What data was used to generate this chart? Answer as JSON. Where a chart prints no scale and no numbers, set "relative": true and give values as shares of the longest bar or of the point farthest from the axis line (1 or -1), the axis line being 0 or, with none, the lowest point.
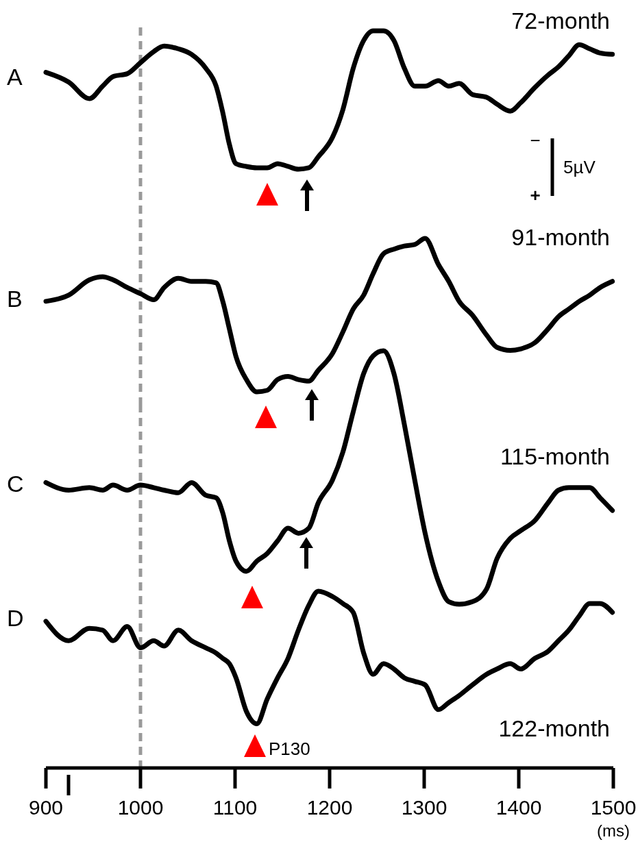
{
  "chart_data": [
    {
      "type": "line",
      "title": "A",
      "subtitle": "72-month",
      "relative": true,
      "tick_labels": false,
      "xlim": [
        900,
        1500
      ],
      "ref_lines": [
        {
          "axis": "x",
          "value": 1000,
          "color": "#999999",
          "line_style": "dashed"
        }
      ],
      "annotations": [
        "−",
        "+",
        "5µV"
      ],
      "x": [
        900,
        924,
        946,
        960,
        971,
        986,
        1000,
        1014,
        1025,
        1040,
        1054,
        1069,
        1080,
        1087,
        1094,
        1101,
        1112,
        1123,
        1134,
        1145,
        1156,
        1167,
        1178,
        1188,
        1203,
        1214,
        1225,
        1236,
        1246,
        1257,
        1268,
        1279,
        1290,
        1301,
        1315,
        1326,
        1337,
        1351,
        1366,
        1377,
        1391,
        1402,
        1417,
        1431,
        1442,
        1453,
        1464,
        1475,
        1486,
        1499
      ],
      "series": [
        {
          "color": "#000000",
          "values": [
            0.7,
            0.63,
            0.51,
            0.6,
            0.67,
            0.69,
            0.77,
            0.85,
            0.89,
            0.87,
            0.83,
            0.73,
            0.6,
            0.41,
            0.18,
            0.04,
            0.02,
            0.01,
            0.01,
            0.04,
            0.02,
            0,
            0.01,
            0.09,
            0.23,
            0.43,
            0.73,
            0.93,
            1,
            1,
            0.93,
            0.73,
            0.6,
            0.6,
            0.64,
            0.6,
            0.62,
            0.54,
            0.52,
            0.47,
            0.42,
            0.48,
            0.59,
            0.68,
            0.74,
            0.82,
            0.9,
            0.87,
            0.84,
            0.83
          ]
        }
      ]
    },
    {
      "type": "line",
      "title": "B",
      "subtitle": "91-month",
      "relative": true,
      "tick_labels": false,
      "xlim": [
        900,
        1500
      ],
      "ref_lines": [
        {
          "axis": "x",
          "value": 1000,
          "color": "#999999",
          "line_style": "dashed"
        }
      ],
      "x": [
        900,
        924,
        946,
        960,
        971,
        986,
        1000,
        1014,
        1025,
        1040,
        1054,
        1069,
        1080,
        1087,
        1094,
        1101,
        1112,
        1123,
        1134,
        1145,
        1156,
        1167,
        1178,
        1188,
        1203,
        1214,
        1225,
        1236,
        1246,
        1257,
        1268,
        1279,
        1290,
        1301,
        1315,
        1326,
        1337,
        1351,
        1366,
        1377,
        1391,
        1402,
        1417,
        1431,
        1442,
        1453,
        1464,
        1475,
        1486,
        1499
      ],
      "series": [
        {
          "color": "#000000",
          "values": [
            0.59,
            0.63,
            0.73,
            0.75,
            0.73,
            0.68,
            0.64,
            0.6,
            0.68,
            0.74,
            0.72,
            0.72,
            0.71,
            0.59,
            0.41,
            0.23,
            0.08,
            0,
            0.01,
            0.08,
            0.1,
            0.08,
            0.07,
            0.14,
            0.25,
            0.39,
            0.54,
            0.63,
            0.77,
            0.9,
            0.93,
            0.95,
            0.96,
            1,
            0.83,
            0.72,
            0.59,
            0.5,
            0.37,
            0.29,
            0.27,
            0.28,
            0.32,
            0.41,
            0.49,
            0.54,
            0.59,
            0.63,
            0.68,
            0.72
          ]
        }
      ]
    },
    {
      "type": "line",
      "title": "C",
      "subtitle": "115-month",
      "relative": true,
      "tick_labels": false,
      "xlim": [
        900,
        1500
      ],
      "ref_lines": [
        {
          "axis": "x",
          "value": 1000,
          "color": "#999999",
          "line_style": "dashed"
        }
      ],
      "x": [
        900,
        924,
        946,
        960,
        971,
        986,
        1000,
        1014,
        1025,
        1040,
        1054,
        1069,
        1080,
        1087,
        1094,
        1101,
        1112,
        1123,
        1134,
        1145,
        1156,
        1167,
        1178,
        1188,
        1203,
        1214,
        1225,
        1236,
        1246,
        1257,
        1268,
        1279,
        1290,
        1301,
        1315,
        1326,
        1337,
        1351,
        1366,
        1377,
        1391,
        1402,
        1417,
        1431,
        1442,
        1453,
        1464,
        1475,
        1486,
        1499
      ],
      "series": [
        {
          "color": "#000000",
          "values": [
            0.48,
            0.45,
            0.46,
            0.45,
            0.47,
            0.45,
            0.47,
            0.46,
            0.45,
            0.44,
            0.48,
            0.43,
            0.42,
            0.36,
            0.25,
            0.17,
            0.13,
            0.17,
            0.2,
            0.25,
            0.3,
            0.28,
            0.3,
            0.4,
            0.49,
            0.6,
            0.76,
            0.91,
            0.98,
            1,
            0.91,
            0.71,
            0.49,
            0.28,
            0.09,
            0.01,
            0,
            0.01,
            0.06,
            0.18,
            0.26,
            0.29,
            0.33,
            0.4,
            0.45,
            0.46,
            0.46,
            0.46,
            0.42,
            0.37
          ]
        }
      ]
    },
    {
      "type": "line",
      "title": "D",
      "subtitle": "122-month",
      "xlabel": "(ms)",
      "relative": true,
      "tick_labels": "x",
      "xlim": [
        900,
        1500
      ],
      "xticks": [
        900,
        1000,
        1100,
        1200,
        1300,
        1400,
        1500
      ],
      "ref_lines": [
        {
          "axis": "x",
          "value": 1000,
          "color": "#999999",
          "line_style": "dashed"
        }
      ],
      "annotations": [
        "P130"
      ],
      "x": [
        900,
        924,
        946,
        960,
        971,
        986,
        1000,
        1014,
        1025,
        1040,
        1054,
        1069,
        1080,
        1087,
        1094,
        1101,
        1112,
        1123,
        1134,
        1145,
        1156,
        1167,
        1178,
        1188,
        1203,
        1214,
        1225,
        1236,
        1246,
        1257,
        1268,
        1279,
        1290,
        1301,
        1315,
        1326,
        1337,
        1351,
        1366,
        1377,
        1391,
        1402,
        1417,
        1431,
        1442,
        1453,
        1464,
        1475,
        1486,
        1499
      ],
      "series": [
        {
          "color": "#000000",
          "values": [
            0.83,
            0.72,
            0.79,
            0.78,
            0.72,
            0.8,
            0.68,
            0.72,
            0.69,
            0.78,
            0.72,
            0.68,
            0.65,
            0.62,
            0.59,
            0.51,
            0.32,
            0.25,
            0.39,
            0.51,
            0.62,
            0.78,
            0.92,
            1,
            0.97,
            0.93,
            0.88,
            0.65,
            0.53,
            0.59,
            0.56,
            0.51,
            0.49,
            0.47,
            0.33,
            0.37,
            0.41,
            0.47,
            0.53,
            0.56,
            0.59,
            0.56,
            0.62,
            0.66,
            0.72,
            0.78,
            0.86,
            0.93,
            0.93,
            0.88
          ]
        }
      ]
    }
  ]
}
